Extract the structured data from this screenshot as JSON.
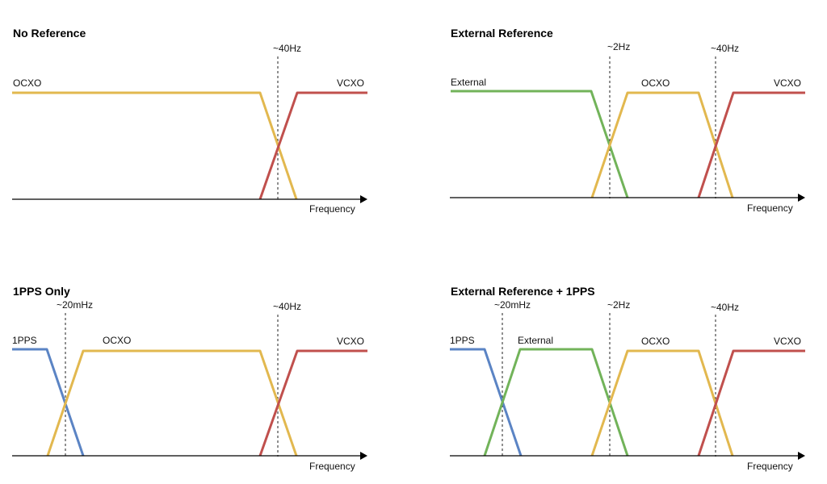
{
  "colors": {
    "ocxo": "#e2b84f",
    "vcxo": "#c0504d",
    "external": "#72b35a",
    "pps": "#5b84c4",
    "axis": "#000000"
  },
  "diagrams": [
    {
      "title": "No Reference",
      "axis_label": "Frequency",
      "markers": [
        {
          "label": "~40Hz"
        }
      ],
      "curves": [
        {
          "label": "OCXO",
          "color_key": "ocxo"
        },
        {
          "label": "VCXO",
          "color_key": "vcxo"
        }
      ]
    },
    {
      "title": "External Reference",
      "axis_label": "Frequency",
      "markers": [
        {
          "label": "~2Hz"
        },
        {
          "label": "~40Hz"
        }
      ],
      "curves": [
        {
          "label": "External",
          "color_key": "external"
        },
        {
          "label": "OCXO",
          "color_key": "ocxo"
        },
        {
          "label": "VCXO",
          "color_key": "vcxo"
        }
      ]
    },
    {
      "title": "1PPS Only",
      "axis_label": "Frequency",
      "markers": [
        {
          "label": "~20mHz"
        },
        {
          "label": "~40Hz"
        }
      ],
      "curves": [
        {
          "label": "1PPS",
          "color_key": "pps"
        },
        {
          "label": "OCXO",
          "color_key": "ocxo"
        },
        {
          "label": "VCXO",
          "color_key": "vcxo"
        }
      ]
    },
    {
      "title": "External Reference + 1PPS",
      "axis_label": "Frequency",
      "markers": [
        {
          "label": "~20mHz"
        },
        {
          "label": "~2Hz"
        },
        {
          "label": "~40Hz"
        }
      ],
      "curves": [
        {
          "label": "1PPS",
          "color_key": "pps"
        },
        {
          "label": "External",
          "color_key": "external"
        },
        {
          "label": "OCXO",
          "color_key": "ocxo"
        },
        {
          "label": "VCXO",
          "color_key": "vcxo"
        }
      ]
    }
  ]
}
